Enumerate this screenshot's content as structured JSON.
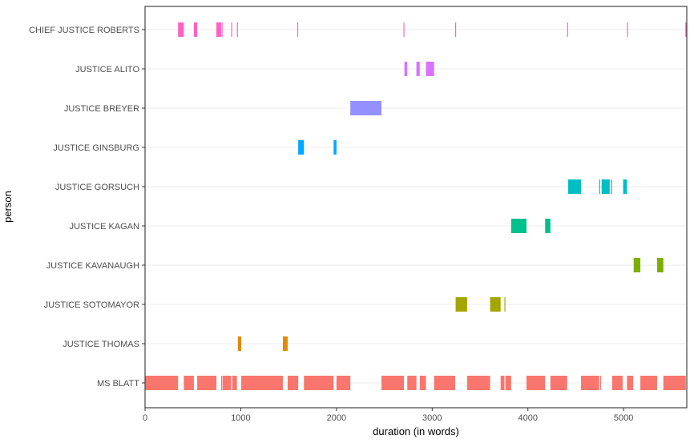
{
  "chart_data": {
    "type": "timeline",
    "title": "",
    "xlabel": "duration (in words)",
    "ylabel": "person",
    "xlim": [
      0,
      5660
    ],
    "x_ticks": [
      0,
      1000,
      2000,
      3000,
      4000,
      5000
    ],
    "x_tick_labels": [
      "0",
      "1000",
      "2000",
      "3000",
      "4000",
      "5000"
    ],
    "grid": "horizontal",
    "legend": "none",
    "categories": [
      "CHIEF JUSTICE ROBERTS",
      "JUSTICE ALITO",
      "JUSTICE BREYER",
      "JUSTICE GINSBURG",
      "JUSTICE GORSUCH",
      "JUSTICE KAGAN",
      "JUSTICE KAVANAUGH",
      "JUSTICE SOTOMAYOR",
      "JUSTICE THOMAS",
      "MS BLATT"
    ],
    "series": [
      {
        "name": "CHIEF JUSTICE ROBERTS",
        "color": "#FF61C3",
        "segments": [
          [
            345,
            405
          ],
          [
            510,
            545
          ],
          [
            745,
            795
          ],
          [
            800,
            810
          ],
          [
            900,
            910
          ],
          [
            960,
            970
          ],
          [
            1590,
            1600
          ],
          [
            2700,
            2710
          ],
          [
            3240,
            3250
          ],
          [
            4410,
            4420
          ],
          [
            5035,
            5045
          ],
          [
            5645,
            5660
          ]
        ]
      },
      {
        "name": "JUSTICE ALITO",
        "color": "#DB72FB",
        "segments": [
          [
            2710,
            2740
          ],
          [
            2835,
            2870
          ],
          [
            2935,
            3020
          ]
        ]
      },
      {
        "name": "JUSTICE BREYER",
        "color": "#9590FF",
        "segments": [
          [
            2145,
            2470
          ]
        ]
      },
      {
        "name": "JUSTICE GINSBURG",
        "color": "#00A9FF",
        "segments": [
          [
            1600,
            1660
          ],
          [
            1970,
            2000
          ]
        ]
      },
      {
        "name": "JUSTICE GORSUCH",
        "color": "#00BFC4",
        "segments": [
          [
            4420,
            4555
          ],
          [
            4745,
            4755
          ],
          [
            4770,
            4855
          ],
          [
            4870,
            4880
          ],
          [
            4995,
            5035
          ]
        ]
      },
      {
        "name": "JUSTICE KAGAN",
        "color": "#00C08B",
        "segments": [
          [
            3825,
            3985
          ],
          [
            4180,
            4235
          ]
        ]
      },
      {
        "name": "JUSTICE KAVANAUGH",
        "color": "#7CAE00",
        "segments": [
          [
            5105,
            5175
          ],
          [
            5350,
            5415
          ]
        ]
      },
      {
        "name": "JUSTICE SOTOMAYOR",
        "color": "#A3A500",
        "segments": [
          [
            3245,
            3365
          ],
          [
            3605,
            3715
          ],
          [
            3755,
            3765
          ]
        ]
      },
      {
        "name": "JUSTICE THOMAS",
        "color": "#E38900",
        "segments": [
          [
            970,
            1005
          ],
          [
            1440,
            1490
          ]
        ]
      },
      {
        "name": "MS BLATT",
        "color": "#F8766D",
        "segments": [
          [
            0,
            345
          ],
          [
            405,
            510
          ],
          [
            545,
            745
          ],
          [
            795,
            805
          ],
          [
            810,
            900
          ],
          [
            910,
            960
          ],
          [
            1005,
            1440
          ],
          [
            1490,
            1600
          ],
          [
            1660,
            1970
          ],
          [
            2000,
            2145
          ],
          [
            2470,
            2705
          ],
          [
            2740,
            2835
          ],
          [
            2870,
            2935
          ],
          [
            3020,
            3240
          ],
          [
            3365,
            3605
          ],
          [
            3715,
            3755
          ],
          [
            3765,
            3825
          ],
          [
            3985,
            4180
          ],
          [
            4235,
            4410
          ],
          [
            4555,
            4745
          ],
          [
            4755,
            4765
          ],
          [
            4880,
            4990
          ],
          [
            5035,
            5100
          ],
          [
            5175,
            5350
          ],
          [
            5415,
            5650
          ]
        ]
      }
    ]
  }
}
